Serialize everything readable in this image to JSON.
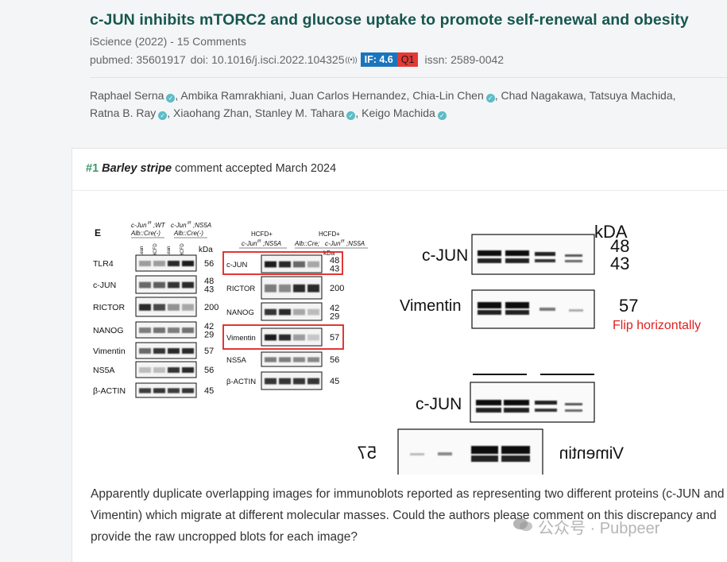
{
  "paper": {
    "title": "c-JUN inhibits mTORC2 and glucose uptake to promote self-renewal and obesity",
    "journal_line": "iScience (2022) - 15 Comments",
    "pubmed": "pubmed: 35601917",
    "doi": "doi: 10.1016/j.isci.2022.104325",
    "if_badge": "IF: 4.6",
    "quartile_badge": "Q1",
    "issn": "issn: 2589-0042",
    "authors": [
      {
        "name": "Raphael Serna",
        "verified": true
      },
      {
        "name": "Ambika Ramrakhiani",
        "verified": false
      },
      {
        "name": "Juan Carlos Hernandez",
        "verified": false
      },
      {
        "name": "Chia-Lin Chen",
        "verified": true
      },
      {
        "name": "Chad Nagakawa",
        "verified": false
      },
      {
        "name": "Tatsuya Machida",
        "verified": false
      },
      {
        "name": "Ratna B. Ray",
        "verified": true
      },
      {
        "name": "Xiaohang Zhan",
        "verified": false
      },
      {
        "name": "Stanley M. Tahara",
        "verified": true
      },
      {
        "name": "Keigo Machida",
        "verified": true
      }
    ],
    "icons": {
      "doi_link": "broadcast-icon",
      "verified": "verified-check-icon"
    },
    "colors": {
      "title": "#17574f",
      "if_badge": "#1b75bc",
      "q1_badge": "#e53935",
      "comment_num": "#3a9a6c",
      "annotation": "#e02020"
    }
  },
  "comment": {
    "number": "#1",
    "author": "Barley stripe",
    "status": "comment accepted March 2024",
    "body": "Apparently duplicate overlapping images for immunoblots reported as representing two different proteins (c-JUN and Vimentin) which migrate at different molecular masses. Could the authors please comment on this discrepancy and provide the raw uncropped blots for each image?"
  },
  "figure": {
    "panel_label": "E",
    "panel_left": {
      "columns": [
        "Lean",
        "HCFD",
        "Lean",
        "HCFD"
      ],
      "unit": "kDa",
      "rows": [
        {
          "label": "TLR4",
          "kda": "56"
        },
        {
          "label": "c-JUN",
          "kda": "48\n43"
        },
        {
          "label": "RICTOR",
          "kda": "200"
        },
        {
          "label": "NANOG",
          "kda": "42\n29"
        },
        {
          "label": "Vimentin",
          "kda": "57"
        },
        {
          "label": "NS5A",
          "kda": "56"
        },
        {
          "label": "β-ACTIN",
          "kda": "45"
        }
      ]
    },
    "panel_middle": {
      "header_left": "HCFD+",
      "header_right": "HCFD+",
      "subheader": "Alb::Cre;",
      "unit": "kDa",
      "rows": [
        {
          "label": "c-JUN",
          "kda": "48\n43"
        },
        {
          "label": "RICTOR",
          "kda": "200"
        },
        {
          "label": "NANOG",
          "kda": "42\n29"
        },
        {
          "label": "Vimentin",
          "kda": "57"
        },
        {
          "label": "NS5A",
          "kda": "56"
        },
        {
          "label": "β-ACTIN",
          "kda": "45"
        }
      ]
    },
    "zoom": {
      "top_unit": "kDA",
      "cjun_label": "c-JUN",
      "cjun_kda_1": "48",
      "cjun_kda_2": "43",
      "vimentin_label": "Vimentin",
      "vimentin_kda": "57",
      "annotation": "Flip horizontally",
      "bottom_cjun_label": "c-JUN",
      "flipped_vimentin_label": "Vimentin",
      "flipped_kda": "57"
    }
  },
  "watermark": {
    "text": "公众号 · Pubpeer",
    "icon": "wechat-icon"
  }
}
